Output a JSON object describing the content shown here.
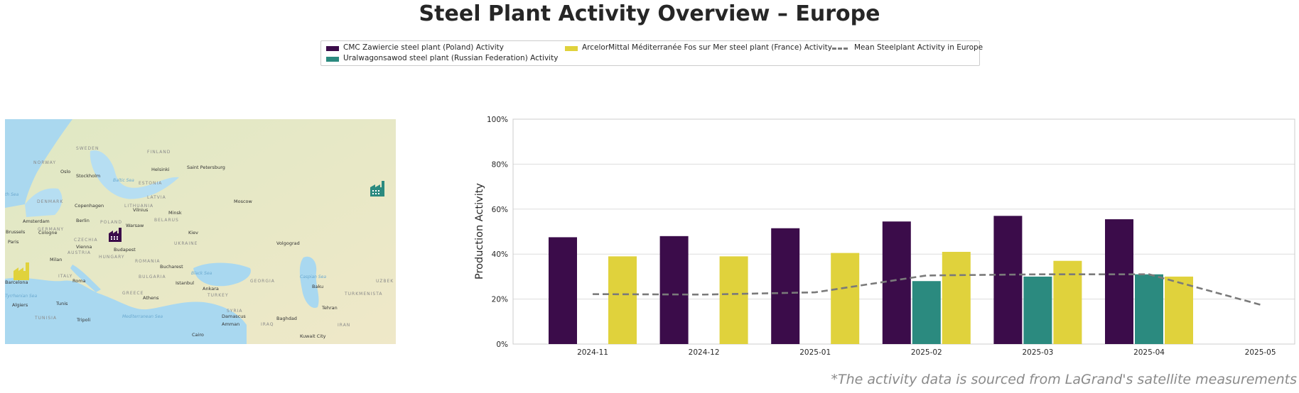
{
  "title": "Steel Plant Activity Overview – Europe",
  "footnote": "*The activity data is sourced from LaGrand's satellite measurements",
  "legend": {
    "items": [
      {
        "label": "CMC Zawiercie steel plant (Poland) Activity",
        "color": "#3b0c4a",
        "kind": "patch"
      },
      {
        "label": "Uralwagonsawod steel plant (Russian Federation) Activity",
        "color": "#2b8a7f",
        "kind": "patch"
      },
      {
        "label": "ArcelorMittal Méditerranée Fos sur Mer steel plant (France) Activity",
        "color": "#e0d23c",
        "kind": "patch"
      },
      {
        "label": "Mean Steelplant Activity in Europe",
        "color": "#7a7a7a",
        "kind": "dashed-line"
      }
    ]
  },
  "map": {
    "places": {
      "sweden": "SWEDEN",
      "finland": "FINLAND",
      "norway": "NORWAY",
      "oslo": "Oslo",
      "stockholm": "Stockholm",
      "helsinki": "Helsinki",
      "saint_petersburg": "Saint Petersburg",
      "baltic_sea": "Baltic Sea",
      "estonia": "ESTONIA",
      "latvia": "LATVIA",
      "lithuania": "LITHUANIA",
      "denmark": "DENMARK",
      "copenhagen": "Copenhagen",
      "north_sea": "th Sea",
      "vilnius": "Vilnius",
      "moscow": "Moscow",
      "minsk": "Minsk",
      "belarus": "BELARUS",
      "amsterdam": "Amsterdam",
      "berlin": "Berlin",
      "poland": "POLAND",
      "warsaw": "Warsaw",
      "germany": "GERMANY",
      "brussels": "Brussels",
      "cologne": "Cologne",
      "paris": "Paris",
      "kiev": "Kiev",
      "ukraine": "UKRAINE",
      "czechia": "CZECHIA",
      "vienna": "Vienna",
      "budapest": "Budapest",
      "austria": "AUSTRIA",
      "hungary": "HUNGARY",
      "volgograd": "Volgograd",
      "milan": "Milan",
      "romania": "ROMANIA",
      "bucharest": "Bucharest",
      "italy": "ITALY",
      "bulgaria": "BULGARIA",
      "black_sea": "Black Sea",
      "roma": "Roma",
      "istanbul": "Istanbul",
      "ankara": "Ankara",
      "georgia": "GEORGIA",
      "caspian_sea": "Caspian Sea",
      "uzbek": "UZBEK",
      "barcelona": "Barcelona",
      "greece": "GREECE",
      "turkey": "TURKEY",
      "baku": "Baku",
      "turkmenistan": "TURKMENISTA",
      "tyrrhenian_sea": "Tyrrhenian Sea",
      "athens": "Athens",
      "algiers": "Algiers",
      "tunis": "Tunis",
      "syria": "SYRIA",
      "tehran": "Tehran",
      "tunisia": "TUNISIA",
      "tripoli": "Tripoli",
      "mediterranean_sea": "Mediterranean Sea",
      "damascus": "Damascus",
      "baghdad": "Baghdad",
      "iraq": "IRAQ",
      "amman": "Amman",
      "iran": "IRAN",
      "cairo": "Cairo",
      "kuwait_city": "Kuwait City"
    }
  },
  "chart_data": {
    "type": "bar",
    "categories": [
      "2024-11",
      "2024-12",
      "2025-01",
      "2025-02",
      "2025-03",
      "2025-04",
      "2025-05"
    ],
    "series": [
      {
        "name": "CMC Zawiercie steel plant (Poland) Activity",
        "color": "#3b0c4a",
        "values": [
          47.5,
          48,
          51.5,
          54.5,
          57,
          55.5,
          null
        ]
      },
      {
        "name": "Uralwagonsawod steel plant (Russian Federation) Activity",
        "color": "#2b8a7f",
        "values": [
          null,
          null,
          null,
          28,
          30,
          31,
          null
        ]
      },
      {
        "name": "ArcelorMittal Méditerranée Fos sur Mer steel plant (France) Activity",
        "color": "#e0d23c",
        "values": [
          39,
          39,
          40.5,
          41,
          37,
          30,
          null
        ]
      }
    ],
    "mean_line": {
      "name": "Mean Steelplant Activity in Europe",
      "color": "#7a7a7a",
      "values": [
        22.2,
        22,
        23,
        30.5,
        31,
        31,
        17.5
      ]
    },
    "ylabel": "Production Activity",
    "xlabel": "",
    "ylim": [
      0,
      100
    ],
    "yticks": [
      "0%",
      "20%",
      "40%",
      "60%",
      "80%",
      "100%"
    ],
    "grid": true
  }
}
